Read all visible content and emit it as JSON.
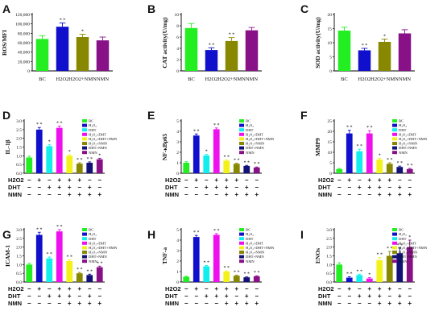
{
  "colors": {
    "BC": "#22ee22",
    "H2O2": "#1010cc",
    "DHT": "#11eeee",
    "H2O2+DHT": "#ee11ee",
    "H2O2+DHT+NMN": "#f2f21a",
    "H2O2+NMN": "#888800",
    "DHT+NMN": "#111177",
    "NMN": "#881188"
  },
  "row_labels": [
    "H2O2",
    "DHT",
    "NMN"
  ],
  "treatment_signs": {
    "H2O2": [
      "−",
      "+",
      "−",
      "+",
      "+",
      "+",
      "−",
      "−"
    ],
    "DHT": [
      "−",
      "−",
      "+",
      "+",
      "+",
      "−",
      "+",
      "−"
    ],
    "NMN": [
      "−",
      "−",
      "−",
      "−",
      "+",
      "+",
      "+",
      "+"
    ]
  },
  "chart_data": [
    {
      "panel": "A",
      "type": "bar",
      "ylabel": "ROS/MFI",
      "ylim": [
        0,
        120000
      ],
      "yticks": [
        "0",
        "20,000",
        "40,000",
        "60,000",
        "80,000",
        "100,000",
        "120,000"
      ],
      "categories": [
        "BC",
        "H2O2",
        "H2O2+NMN",
        "NMN"
      ],
      "category_labels": [
        "BC",
        "H2O2",
        "H2O2+NMN",
        "NMN"
      ],
      "values": [
        68000,
        94000,
        72000,
        65000
      ],
      "errors": [
        7000,
        8000,
        6000,
        7000
      ],
      "marks": [
        "",
        "* *",
        "*",
        ""
      ]
    },
    {
      "panel": "B",
      "type": "bar",
      "ylabel": "CAT activity(U/mg)",
      "ylim": [
        0,
        10
      ],
      "yticks": [
        "0",
        "2",
        "4",
        "6",
        "8",
        "10"
      ],
      "categories": [
        "BC",
        "H2O2",
        "H2O2+NMN",
        "NMN"
      ],
      "category_labels": [
        "BC",
        "H2O2",
        "H2O2+NMN",
        "NMN"
      ],
      "values": [
        7.6,
        3.7,
        5.3,
        7.2
      ],
      "errors": [
        0.8,
        0.4,
        0.6,
        0.5
      ],
      "marks": [
        "",
        "* *",
        "* *",
        ""
      ]
    },
    {
      "panel": "C",
      "type": "bar",
      "ylabel": "SOD activity(U/mg)",
      "ylim": [
        0,
        20
      ],
      "yticks": [
        "0",
        "5",
        "10",
        "15",
        "20"
      ],
      "categories": [
        "BC",
        "H2O2",
        "H2O2+NMN",
        "NMN"
      ],
      "category_labels": [
        "BC",
        "H2O2",
        "H2O2+NMN",
        "NMN"
      ],
      "values": [
        14.3,
        7.3,
        10.3,
        13.3
      ],
      "errors": [
        1.2,
        0.7,
        1.0,
        1.3
      ],
      "marks": [
        "",
        "* *",
        "*",
        ""
      ]
    },
    {
      "panel": "D",
      "type": "bar",
      "ylabel": "IL-1β",
      "ylim": [
        0,
        3.0
      ],
      "yticks": [
        "0.0",
        "0.5",
        "1.0",
        "1.5",
        "2.0",
        "2.5",
        "3.0"
      ],
      "categories": [
        "BC",
        "H2O2",
        "DHT",
        "H2O2+DHT",
        "H2O2+DHT+NMN",
        "H2O2+NMN",
        "DHT+NMN",
        "NMN"
      ],
      "legend": [
        "BC",
        "H₂O₂",
        "DHT",
        "H₂O₂+DHT",
        "H₂O₂+DHT+NMN",
        "H₂O₂+NMN",
        "DHT+NMN",
        "NMN"
      ],
      "values": [
        0.9,
        2.5,
        1.55,
        2.6,
        1.0,
        0.55,
        0.6,
        0.8
      ],
      "errors": [
        0.08,
        0.12,
        0.08,
        0.1,
        0.06,
        0.05,
        0.05,
        0.06
      ],
      "marks": [
        "",
        "* *",
        "*",
        "* *",
        "*",
        "* *",
        "* *",
        "*"
      ]
    },
    {
      "panel": "E",
      "type": "bar",
      "ylabel": "NF-κBp65",
      "ylim": [
        0,
        5
      ],
      "yticks": [
        "0",
        "1",
        "2",
        "3",
        "4",
        "5"
      ],
      "categories": [
        "BC",
        "H2O2",
        "DHT",
        "H2O2+DHT",
        "H2O2+DHT+NMN",
        "H2O2+NMN",
        "DHT+NMN",
        "NMN"
      ],
      "legend": [
        "BC",
        "H₂O₂",
        "DHT",
        "H₂O₂+DHT",
        "H₂O₂+DHT+NMN",
        "H₂O₂+NMN",
        "DHT+NMN",
        "NMN"
      ],
      "values": [
        1.0,
        3.6,
        1.7,
        4.2,
        1.2,
        0.9,
        0.7,
        0.55
      ],
      "errors": [
        0.1,
        0.15,
        0.1,
        0.12,
        0.08,
        0.06,
        0.05,
        0.05
      ],
      "marks": [
        "",
        "* *",
        "*",
        "* *",
        "* *",
        "* *",
        "* *",
        "* *"
      ]
    },
    {
      "panel": "F",
      "type": "bar",
      "ylabel": "MMP9",
      "ylim": [
        0,
        25
      ],
      "yticks": [
        "0",
        "5",
        "10",
        "15",
        "20",
        "25"
      ],
      "categories": [
        "BC",
        "H2O2",
        "DHT",
        "H2O2+DHT",
        "H2O2+DHT+NMN",
        "H2O2+NMN",
        "DHT+NMN",
        "NMN"
      ],
      "legend": [
        "BC",
        "H₂O₂",
        "DHT",
        "H₂O₂+DHT",
        "H₂O₂+DHT+NMN",
        "H₂O₂+NMN",
        "DHT+NMN",
        "NMN"
      ],
      "values": [
        2,
        19,
        10.5,
        19,
        6.5,
        4.5,
        3,
        2
      ],
      "errors": [
        0.3,
        1.5,
        1.0,
        1.3,
        0.6,
        0.5,
        0.4,
        0.3
      ],
      "marks": [
        "",
        "* *",
        "* *",
        "* *",
        "*",
        "* *",
        "* *",
        "* *"
      ]
    },
    {
      "panel": "G",
      "type": "bar",
      "ylabel": "ICAM-1",
      "ylim": [
        0,
        3.0
      ],
      "yticks": [
        "0.0",
        "0.5",
        "1.0",
        "1.5",
        "2.0",
        "2.5",
        "3.0"
      ],
      "categories": [
        "BC",
        "H2O2",
        "DHT",
        "H2O2+DHT",
        "H2O2+DHT+NMN",
        "H2O2+NMN",
        "DHT+NMN",
        "NMN"
      ],
      "legend": [
        "BC",
        "H₂O₂",
        "DHT",
        "H₂O₂+DHT",
        "H₂O₂+DHT+NMN",
        "H₂O₂+NMN",
        "DHT+NMN",
        "NMN"
      ],
      "values": [
        1.0,
        2.7,
        1.35,
        2.9,
        1.2,
        0.5,
        0.4,
        0.85
      ],
      "errors": [
        0.07,
        0.15,
        0.08,
        0.1,
        0.07,
        0.05,
        0.05,
        0.06
      ],
      "marks": [
        "",
        "* *",
        "* *",
        "* *",
        "* *",
        "* *",
        "* *",
        "* *"
      ]
    },
    {
      "panel": "H",
      "type": "bar",
      "ylabel": "TNF-a",
      "ylim": [
        0,
        5
      ],
      "yticks": [
        "0",
        "1",
        "2",
        "3",
        "4",
        "5"
      ],
      "categories": [
        "BC",
        "H2O2",
        "DHT",
        "H2O2+DHT",
        "H2O2+DHT+NMN",
        "H2O2+NMN",
        "DHT+NMN",
        "NMN"
      ],
      "legend": [
        "BC",
        "H₂O₂",
        "DHT",
        "H₂O₂+DHT",
        "H₂O₂+DHT+NMN",
        "H₂O₂+NMN",
        "DHT+NMN",
        "NMN"
      ],
      "values": [
        0.5,
        4.3,
        1.5,
        4.5,
        1.0,
        0.6,
        0.45,
        0.55
      ],
      "errors": [
        0.05,
        0.15,
        0.08,
        0.12,
        0.06,
        0.05,
        0.04,
        0.05
      ],
      "marks": [
        "",
        "* *",
        "* *",
        "* *",
        "* *",
        "* *",
        "* *",
        "* *"
      ]
    },
    {
      "panel": "I",
      "type": "bar",
      "ylabel": "ENOs",
      "ylim": [
        0,
        3.0
      ],
      "yticks": [
        "0.0",
        "0.5",
        "1.0",
        "1.5",
        "2.0",
        "2.5",
        "3.0"
      ],
      "categories": [
        "BC",
        "H2O2",
        "DHT",
        "H2O2+DHT",
        "H2O2+DHT+NMN",
        "H2O2+NMN",
        "DHT+NMN",
        "NMN"
      ],
      "legend": [
        "BC",
        "H₂O₂",
        "DHT",
        "H₂O₂+DHT",
        "H₂O₂+DHT+NMN",
        "H₂O₂+NMN",
        "DHT+NMN",
        "NMN"
      ],
      "values": [
        1.0,
        0.25,
        0.4,
        0.2,
        1.25,
        1.5,
        1.65,
        2.0
      ],
      "errors": [
        0.1,
        0.05,
        0.05,
        0.05,
        0.15,
        0.25,
        0.3,
        0.4
      ],
      "marks": [
        "",
        "* *",
        "* *",
        "*",
        "* *",
        "* *",
        "* *",
        "*"
      ]
    }
  ]
}
